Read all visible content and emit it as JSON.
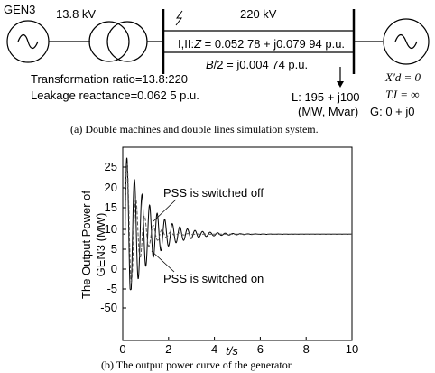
{
  "part_a": {
    "gen_label": "GEN3",
    "gen_voltage": "13.8 kV",
    "bus_voltage": "220 kV",
    "line_impedance_prefix": "I,II:",
    "line_impedance_z": "Z",
    "line_impedance_value": " = 0.052 78 + j0.079 94 p.u.",
    "line_shunt_b": "B",
    "line_shunt_value": "/2 = j0.004 74 p.u.",
    "transformer_ratio": "Transformation ratio=13.8:220",
    "leakage_reactance": "Leakage reactance=0.062 5 p.u.",
    "load_line1": "L: 195 + j100",
    "load_line2": "(MW, Mvar)",
    "infbus_xd": "X′d = 0",
    "infbus_tj": "TJ = ∞",
    "infbus_g": "G:  0 + j0",
    "caption": "(a)   Double machines and double lines simulation system."
  },
  "part_b": {
    "caption": "(b)   The output power curve of the generator.",
    "annotation_off": "PSS is switched off",
    "annotation_on": "PSS is switched on"
  },
  "chart_data": {
    "type": "line",
    "xlabel": "t/s",
    "ylabel_line1": "The Output Power of",
    "ylabel_line2": "GEN3 (MW)",
    "xlim": [
      0,
      10
    ],
    "ylim": [
      -60,
      28
    ],
    "xticks": [
      "0",
      "2",
      "4",
      "6",
      "8",
      "10"
    ],
    "yticks": [
      "25",
      "20",
      "15",
      "10",
      "5",
      "0",
      "-5",
      "-50"
    ],
    "steady_value": 8.8,
    "series": [
      {
        "name": "PSS is switched off",
        "initial_amp": 20,
        "decay": 1.0,
        "period": 0.33
      },
      {
        "name": "PSS is switched on",
        "initial_amp": 20,
        "decay": 1.8,
        "period": 0.38
      }
    ]
  }
}
